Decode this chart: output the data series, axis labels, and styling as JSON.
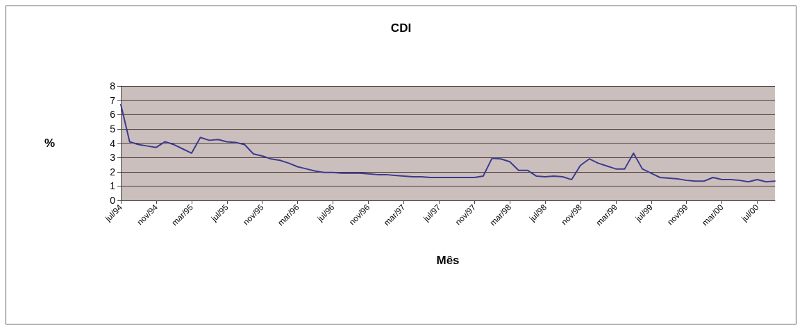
{
  "chart_data": {
    "type": "line",
    "title": "CDI",
    "xlabel": "Mês",
    "ylabel": "%",
    "categories": [
      "jul/94",
      null,
      null,
      null,
      "nov/94",
      null,
      null,
      null,
      "mar/95",
      null,
      null,
      null,
      "jul/95",
      null,
      null,
      null,
      "nov/95",
      null,
      null,
      null,
      "mar/96",
      null,
      null,
      null,
      "jul/96",
      null,
      null,
      null,
      "nov/96",
      null,
      null,
      null,
      "mar/97",
      null,
      null,
      null,
      "jul/97",
      null,
      null,
      null,
      "nov/97",
      null,
      null,
      null,
      "mar/98",
      null,
      null,
      null,
      "jul/98",
      null,
      null,
      null,
      "nov/98",
      null,
      null,
      null,
      "mar/99",
      null,
      null,
      null,
      "jul/99",
      null,
      null,
      null,
      "nov/99",
      null,
      null,
      null,
      "mar/00",
      null,
      null,
      null,
      "jul/00",
      null,
      null
    ],
    "series": [
      {
        "color": "#3b3a8f",
        "values": [
          6.7,
          4.1,
          3.9,
          3.8,
          3.7,
          4.1,
          3.9,
          3.6,
          3.3,
          4.4,
          4.2,
          4.25,
          4.1,
          4.05,
          3.9,
          3.25,
          3.1,
          2.9,
          2.8,
          2.6,
          2.35,
          2.2,
          2.05,
          1.95,
          1.95,
          1.9,
          1.9,
          1.9,
          1.85,
          1.8,
          1.8,
          1.75,
          1.7,
          1.65,
          1.65,
          1.6,
          1.6,
          1.6,
          1.6,
          1.6,
          1.6,
          1.7,
          2.95,
          2.9,
          2.7,
          2.1,
          2.1,
          1.7,
          1.65,
          1.7,
          1.65,
          1.45,
          2.45,
          2.9,
          2.6,
          2.4,
          2.2,
          2.2,
          3.3,
          2.2,
          1.9,
          1.6,
          1.55,
          1.5,
          1.4,
          1.35,
          1.35,
          1.6,
          1.45,
          1.45,
          1.4,
          1.3,
          1.45,
          1.3,
          1.35
        ]
      }
    ],
    "ylim": [
      0,
      8
    ],
    "yticks": [
      0,
      1,
      2,
      3,
      4,
      5,
      6,
      7,
      8
    ],
    "grid": "y",
    "marker": "none",
    "line_style": "solid"
  }
}
